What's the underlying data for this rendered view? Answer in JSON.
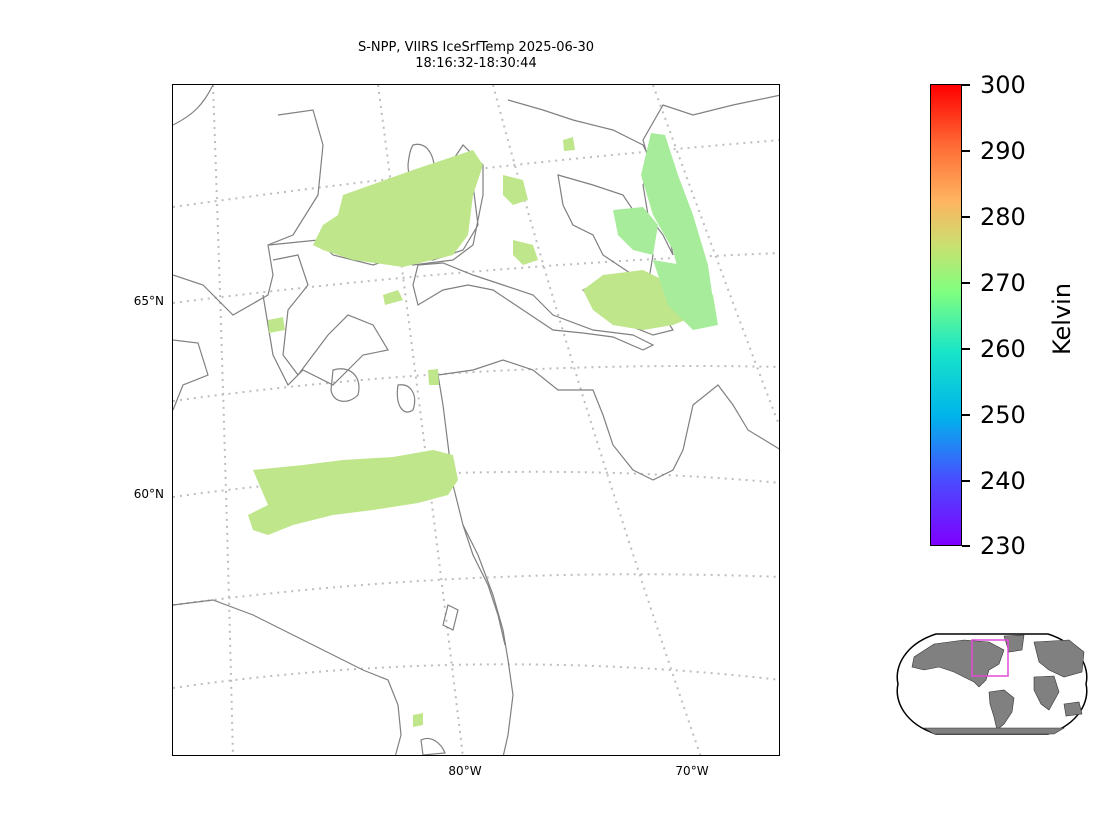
{
  "title_line1": "S-NPP, VIIRS IceSrfTemp 2025-06-30",
  "title_line2": "18:16:32-18:30:44",
  "lat_labels": [
    "65°N",
    "60°N"
  ],
  "lon_labels": [
    "80°W",
    "70°W"
  ],
  "colorbar": {
    "label": "Kelvin",
    "ticks": [
      "300",
      "290",
      "280",
      "270",
      "260",
      "250",
      "240",
      "230"
    ],
    "min": 230,
    "max": 300,
    "colormap": "rainbow"
  },
  "colors": {
    "coastline": "#808080",
    "gridline": "#bdbdbd",
    "data_fill": "#bfe68a",
    "data_fill_alt": "#a6ec9a",
    "inset_land": "#808080",
    "inset_box": "#e24bd6"
  }
}
